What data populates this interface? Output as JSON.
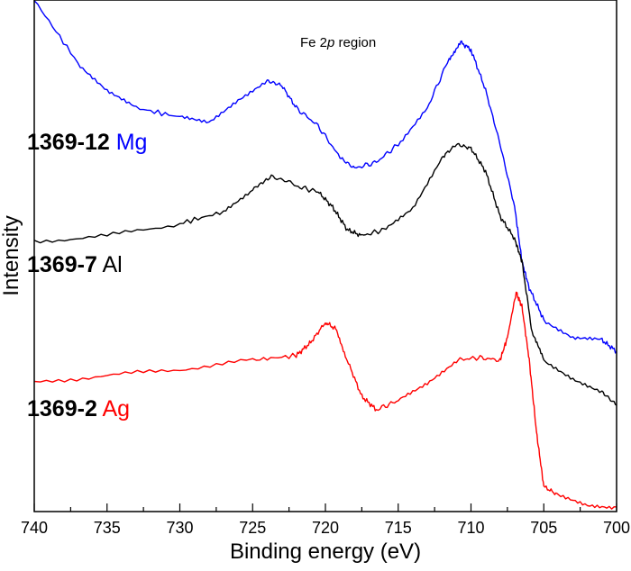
{
  "chart_data": {
    "type": "line",
    "title": "",
    "annotation": {
      "prefix": "Fe 2",
      "italic": "p",
      "suffix": " region"
    },
    "xlabel": "Binding energy (eV)",
    "ylabel": "Intensity",
    "xlim": [
      740,
      700
    ],
    "ylim": [
      0,
      100
    ],
    "x_ticks": [
      "740",
      "735",
      "730",
      "725",
      "720",
      "715",
      "710",
      "705",
      "700"
    ],
    "x_tick_values": [
      740,
      735,
      730,
      725,
      720,
      715,
      710,
      705,
      700
    ],
    "minor_tick_step": 2.5,
    "y_ticks": [],
    "grid": false,
    "series": [
      {
        "sample": "1369-12",
        "source": "Mg",
        "color": "#0000ff",
        "x": [
          740,
          737,
          735,
          733,
          730,
          728,
          726,
          724,
          723,
          722,
          720.5,
          719,
          718,
          716.5,
          715,
          713,
          711.5,
          710.7,
          710,
          709,
          708,
          707,
          706.5,
          706,
          705,
          703,
          701,
          700
        ],
        "y": [
          100,
          87.7,
          82.4,
          78.9,
          77.1,
          76.2,
          80.6,
          84.2,
          83.3,
          78.9,
          75.4,
          69.2,
          67.1,
          68.3,
          71.8,
          78.9,
          88.6,
          91.7,
          90.3,
          82.4,
          71.8,
          59.5,
          48.9,
          43.7,
          37.5,
          34.0,
          33.5,
          31.3
        ]
      },
      {
        "sample": "1369-7",
        "source": "Al",
        "color": "#000000",
        "x": [
          740,
          735,
          730,
          727,
          725,
          723.6,
          722,
          720.5,
          719.5,
          718.5,
          717.5,
          716,
          714,
          712,
          711,
          710,
          709,
          708,
          707,
          706.5,
          705.8,
          705,
          703,
          701,
          700
        ],
        "y": [
          52.8,
          53.9,
          56.3,
          58.6,
          63.0,
          65.7,
          63.6,
          62.5,
          59.5,
          55.1,
          53.9,
          55.1,
          59.5,
          69.2,
          71.8,
          71.0,
          66.5,
          57.7,
          53.3,
          48.9,
          34.9,
          29.6,
          26.1,
          23.4,
          20.8
        ]
      },
      {
        "sample": "1369-2",
        "source": "Ag",
        "color": "#ff0000",
        "x": [
          740,
          735,
          730,
          725,
          722,
          721,
          720,
          719.3,
          718.5,
          717.5,
          716.5,
          715,
          713,
          711,
          709.5,
          708,
          707.5,
          706.9,
          706.5,
          706,
          705.5,
          705,
          704,
          702,
          700
        ],
        "y": [
          25.2,
          26.6,
          27.8,
          29.6,
          30.5,
          33.1,
          37.0,
          35.7,
          29.6,
          22.5,
          19.9,
          21.7,
          25.2,
          29.6,
          30.1,
          29.6,
          34.0,
          42.8,
          40.1,
          29.6,
          15.5,
          4.9,
          3.2,
          1.4,
          0.9
        ]
      }
    ]
  }
}
